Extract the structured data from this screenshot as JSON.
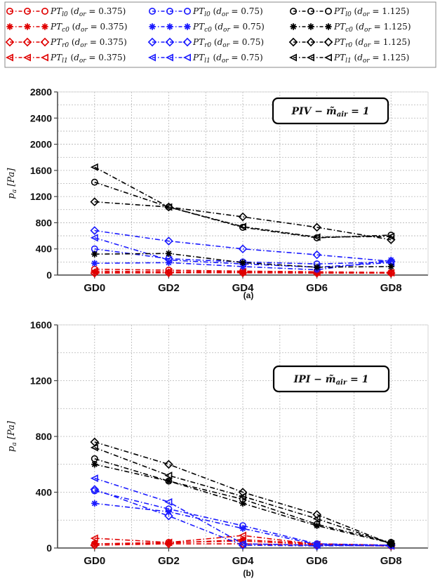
{
  "legend": {
    "entries": [
      {
        "label": "PT_l0 (d_or = 0.375)",
        "color": "#e00000",
        "marker": "circle"
      },
      {
        "label": "PT_l0 (d_or = 0.75)",
        "color": "#1a1aff",
        "marker": "circle"
      },
      {
        "label": "PT_l0 (d_or = 1.125)",
        "color": "#000000",
        "marker": "circle"
      },
      {
        "label": "PT_c0 (d_or = 0.375)",
        "color": "#e00000",
        "marker": "star"
      },
      {
        "label": "PT_c0 (d_or = 0.75)",
        "color": "#1a1aff",
        "marker": "star"
      },
      {
        "label": "PT_c0 (d_or = 1.125)",
        "color": "#000000",
        "marker": "star"
      },
      {
        "label": "PT_r0 (d_or = 0.375)",
        "color": "#e00000",
        "marker": "diamond"
      },
      {
        "label": "PT_r0 (d_or = 0.75)",
        "color": "#1a1aff",
        "marker": "diamond"
      },
      {
        "label": "PT_r0 (d_or = 1.125)",
        "color": "#000000",
        "marker": "diamond"
      },
      {
        "label": "PT_l1 (d_or = 0.375)",
        "color": "#e00000",
        "marker": "triangle-left"
      },
      {
        "label": "PT_l1 (d_or = 0.75)",
        "color": "#1a1aff",
        "marker": "triangle-left"
      },
      {
        "label": "PT_l1 (d_or = 1.125)",
        "color": "#000000",
        "marker": "triangle-left"
      }
    ]
  },
  "chart_data": [
    {
      "type": "line",
      "subtitle": "(a)",
      "annotation": "PIV − m̃_air = 1",
      "ylabel": "p_a [Pa]",
      "xlabel": "",
      "categories": [
        "GD0",
        "GD2",
        "GD4",
        "GD6",
        "GD8"
      ],
      "ylim": [
        0,
        2800
      ],
      "yticks": [
        0,
        400,
        800,
        1200,
        1600,
        2000,
        2400,
        2800
      ],
      "grid": true,
      "series": [
        {
          "name": "PT_l0 (d_or = 0.375)",
          "values": [
            90,
            75,
            60,
            50,
            40
          ]
        },
        {
          "name": "PT_c0 (d_or = 0.375)",
          "values": [
            40,
            35,
            40,
            35,
            30
          ]
        },
        {
          "name": "PT_r0 (d_or = 0.375)",
          "values": [
            30,
            35,
            35,
            30,
            30
          ]
        },
        {
          "name": "PT_l1 (d_or = 0.375)",
          "values": [
            60,
            50,
            50,
            40,
            35
          ]
        },
        {
          "name": "PT_l0 (d_or = 0.75)",
          "values": [
            400,
            250,
            200,
            170,
            200
          ]
        },
        {
          "name": "PT_c0 (d_or = 0.75)",
          "values": [
            180,
            190,
            130,
            80,
            230
          ]
        },
        {
          "name": "PT_r0 (d_or = 0.75)",
          "values": [
            680,
            520,
            400,
            310,
            210
          ]
        },
        {
          "name": "PT_l1 (d_or = 0.75)",
          "values": [
            570,
            230,
            170,
            120,
            190
          ]
        },
        {
          "name": "PT_l0 (d_or = 1.125)",
          "values": [
            1420,
            1040,
            730,
            570,
            610
          ]
        },
        {
          "name": "PT_c0 (d_or = 1.125)",
          "values": [
            320,
            330,
            190,
            120,
            130
          ]
        },
        {
          "name": "PT_r0 (d_or = 1.125)",
          "values": [
            1120,
            1040,
            890,
            730,
            540
          ]
        },
        {
          "name": "PT_l1 (d_or = 1.125)",
          "values": [
            1650,
            1040,
            740,
            580,
            590
          ]
        }
      ]
    },
    {
      "type": "line",
      "subtitle": "(b)",
      "annotation": "IPI − m̃_air = 1",
      "ylabel": "p_a [Pa]",
      "xlabel": "",
      "categories": [
        "GD0",
        "GD2",
        "GD4",
        "GD6",
        "GD8"
      ],
      "ylim": [
        0,
        1600
      ],
      "yticks": [
        0,
        400,
        800,
        1200,
        1600
      ],
      "grid": true,
      "series": [
        {
          "name": "PT_l0 (d_or = 0.375)",
          "values": [
            30,
            40,
            50,
            25,
            15
          ]
        },
        {
          "name": "PT_c0 (d_or = 0.375)",
          "values": [
            30,
            35,
            60,
            30,
            20
          ]
        },
        {
          "name": "PT_r0 (d_or = 0.375)",
          "values": [
            20,
            30,
            30,
            20,
            15
          ]
        },
        {
          "name": "PT_l1 (d_or = 0.375)",
          "values": [
            70,
            40,
            90,
            25,
            15
          ]
        },
        {
          "name": "PT_l0 (d_or = 0.75)",
          "values": [
            410,
            280,
            160,
            30,
            20
          ]
        },
        {
          "name": "PT_c0 (d_or = 0.75)",
          "values": [
            320,
            260,
            140,
            25,
            15
          ]
        },
        {
          "name": "PT_r0 (d_or = 0.75)",
          "values": [
            420,
            230,
            20,
            15,
            20
          ]
        },
        {
          "name": "PT_l1 (d_or = 0.75)",
          "values": [
            500,
            330,
            30,
            20,
            15
          ]
        },
        {
          "name": "PT_l0 (d_or = 1.125)",
          "values": [
            640,
            480,
            350,
            170,
            40
          ]
        },
        {
          "name": "PT_c0 (d_or = 1.125)",
          "values": [
            600,
            480,
            320,
            160,
            35
          ]
        },
        {
          "name": "PT_r0 (d_or = 1.125)",
          "values": [
            760,
            600,
            400,
            240,
            30
          ]
        },
        {
          "name": "PT_l1 (d_or = 1.125)",
          "values": [
            720,
            520,
            370,
            210,
            30
          ]
        }
      ]
    }
  ]
}
